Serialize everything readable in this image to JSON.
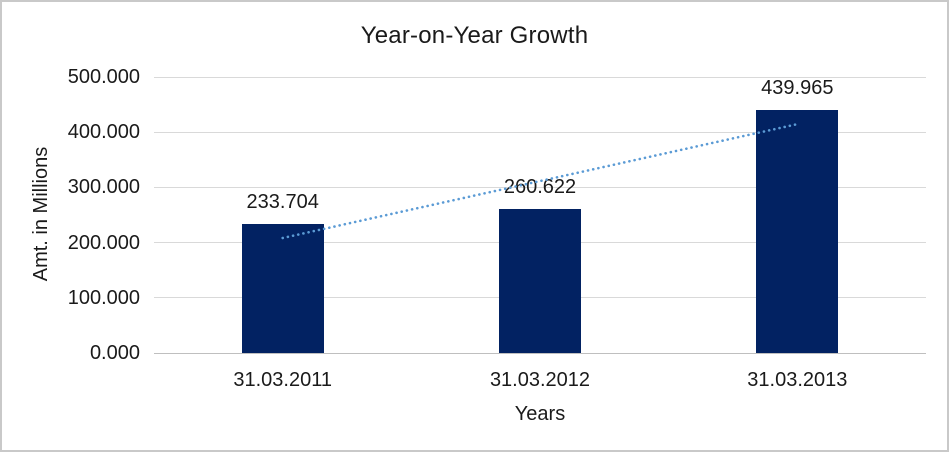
{
  "chart": {
    "title": "Year-on-Year Growth",
    "y_axis_title": "Amt. in Millions",
    "x_axis_title": "Years"
  },
  "chart_data": {
    "type": "bar",
    "title": "Year-on-Year Growth",
    "xlabel": "Years",
    "ylabel": "Amt. in Millions",
    "categories": [
      "31.03.2011",
      "31.03.2012",
      "31.03.2013"
    ],
    "values": [
      233.704,
      260.622,
      439.965
    ],
    "data_labels": [
      "233.704",
      "260.622",
      "439.965"
    ],
    "ylim": [
      0,
      500
    ],
    "y_tick_step": 100,
    "y_tick_labels": [
      "0.000",
      "100.000",
      "200.000",
      "300.000",
      "400.000",
      "500.000"
    ],
    "grid": true,
    "legend": false,
    "bar_color": "#022262",
    "gridline_color": "#d9d9d9",
    "trendline": {
      "type": "linear",
      "style": "dotted",
      "color": "#5b9bd5",
      "start_value": 208.3,
      "end_value": 414.6
    }
  }
}
